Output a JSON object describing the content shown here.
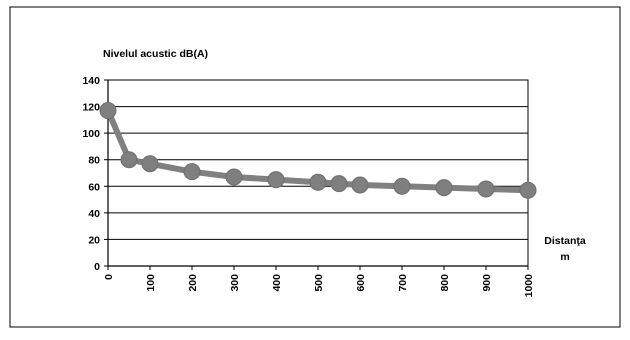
{
  "chart_data": {
    "type": "line",
    "ylabel": "Nivelul acustic dB(A)",
    "xlabel_line1": "Distanţa",
    "xlabel_line2": "m",
    "ylim": [
      0,
      140
    ],
    "yticks": [
      0,
      20,
      40,
      60,
      80,
      100,
      120,
      140
    ],
    "xticks": [
      0,
      100,
      200,
      300,
      400,
      500,
      600,
      700,
      800,
      900,
      1000
    ],
    "grid": true,
    "legend": "none",
    "colors": {
      "line": "#808080",
      "marker": "#7f7f7f",
      "grid": "#000000",
      "frame": "#000000"
    },
    "series": [
      {
        "x": [
          0,
          50,
          100,
          200,
          300,
          400,
          500,
          550,
          600,
          700,
          800,
          900,
          1000
        ],
        "values": [
          117,
          80,
          77,
          71,
          67,
          65,
          63,
          62,
          61,
          60,
          59,
          58,
          57
        ]
      }
    ]
  }
}
